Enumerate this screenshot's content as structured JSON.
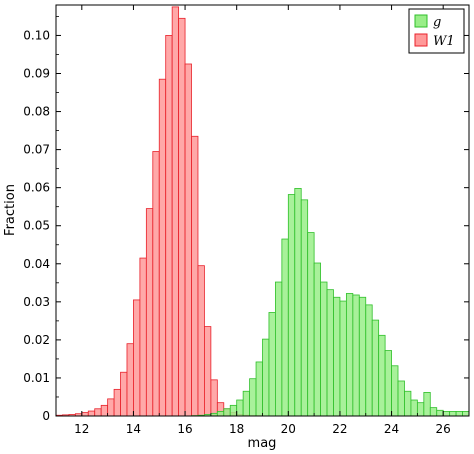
{
  "chart_data": {
    "type": "bar",
    "xlabel": "mag",
    "ylabel": "Fraction",
    "xlim": [
      11,
      27
    ],
    "ylim": [
      0,
      0.108
    ],
    "x_ticks": [
      "12",
      "14",
      "16",
      "18",
      "20",
      "22",
      "24",
      "26"
    ],
    "y_ticks": [
      "0",
      "0.01",
      "0.02",
      "0.03",
      "0.04",
      "0.05",
      "0.06",
      "0.07",
      "0.08",
      "0.09",
      "0.10"
    ],
    "legend_position": "top-right",
    "bin_width": 0.25,
    "series": [
      {
        "name": "W1",
        "color": "#ff9999",
        "edge_color": "#e8212a",
        "bin_starts": [
          11.0,
          11.25,
          11.5,
          11.75,
          12.0,
          12.25,
          12.5,
          12.75,
          13.0,
          13.25,
          13.5,
          13.75,
          14.0,
          14.25,
          14.5,
          14.75,
          15.0,
          15.25,
          15.5,
          15.75,
          16.0,
          16.25,
          16.5,
          16.75,
          17.0,
          17.25,
          17.5,
          17.75,
          18.0,
          18.25,
          18.5,
          18.75
        ],
        "values": [
          0.0002,
          0.0003,
          0.0004,
          0.0006,
          0.0009,
          0.0013,
          0.0019,
          0.0028,
          0.0045,
          0.007,
          0.0115,
          0.019,
          0.0305,
          0.0415,
          0.0545,
          0.0695,
          0.0885,
          0.1,
          0.1075,
          0.1045,
          0.0925,
          0.0735,
          0.0395,
          0.0235,
          0.0095,
          0.0035,
          0.0019,
          0.0009,
          0.0004,
          0.0002,
          0.0001,
          0.0001
        ]
      },
      {
        "name": "g",
        "color": "#99ee88",
        "edge_color": "#2fbf2a",
        "bin_starts": [
          16.25,
          16.5,
          16.75,
          17.0,
          17.25,
          17.5,
          17.75,
          18.0,
          18.25,
          18.5,
          18.75,
          19.0,
          19.25,
          19.5,
          19.75,
          20.0,
          20.25,
          20.5,
          20.75,
          21.0,
          21.25,
          21.5,
          21.75,
          22.0,
          22.25,
          22.5,
          22.75,
          23.0,
          23.25,
          23.5,
          23.75,
          24.0,
          24.25,
          24.5,
          24.75,
          25.0,
          25.25,
          25.5,
          25.75,
          26.0,
          26.25,
          26.5,
          26.75
        ],
        "values": [
          0.0001,
          0.0002,
          0.0004,
          0.0007,
          0.0012,
          0.0019,
          0.0028,
          0.0042,
          0.0065,
          0.0098,
          0.0142,
          0.0202,
          0.0272,
          0.0352,
          0.0465,
          0.0582,
          0.0598,
          0.0568,
          0.0482,
          0.0402,
          0.0352,
          0.0332,
          0.0312,
          0.0302,
          0.0322,
          0.0318,
          0.0312,
          0.0292,
          0.0252,
          0.0212,
          0.0172,
          0.0132,
          0.0092,
          0.0065,
          0.0042,
          0.0035,
          0.0062,
          0.0022,
          0.0015,
          0.0012,
          0.0012,
          0.0012,
          0.0012
        ]
      }
    ]
  }
}
